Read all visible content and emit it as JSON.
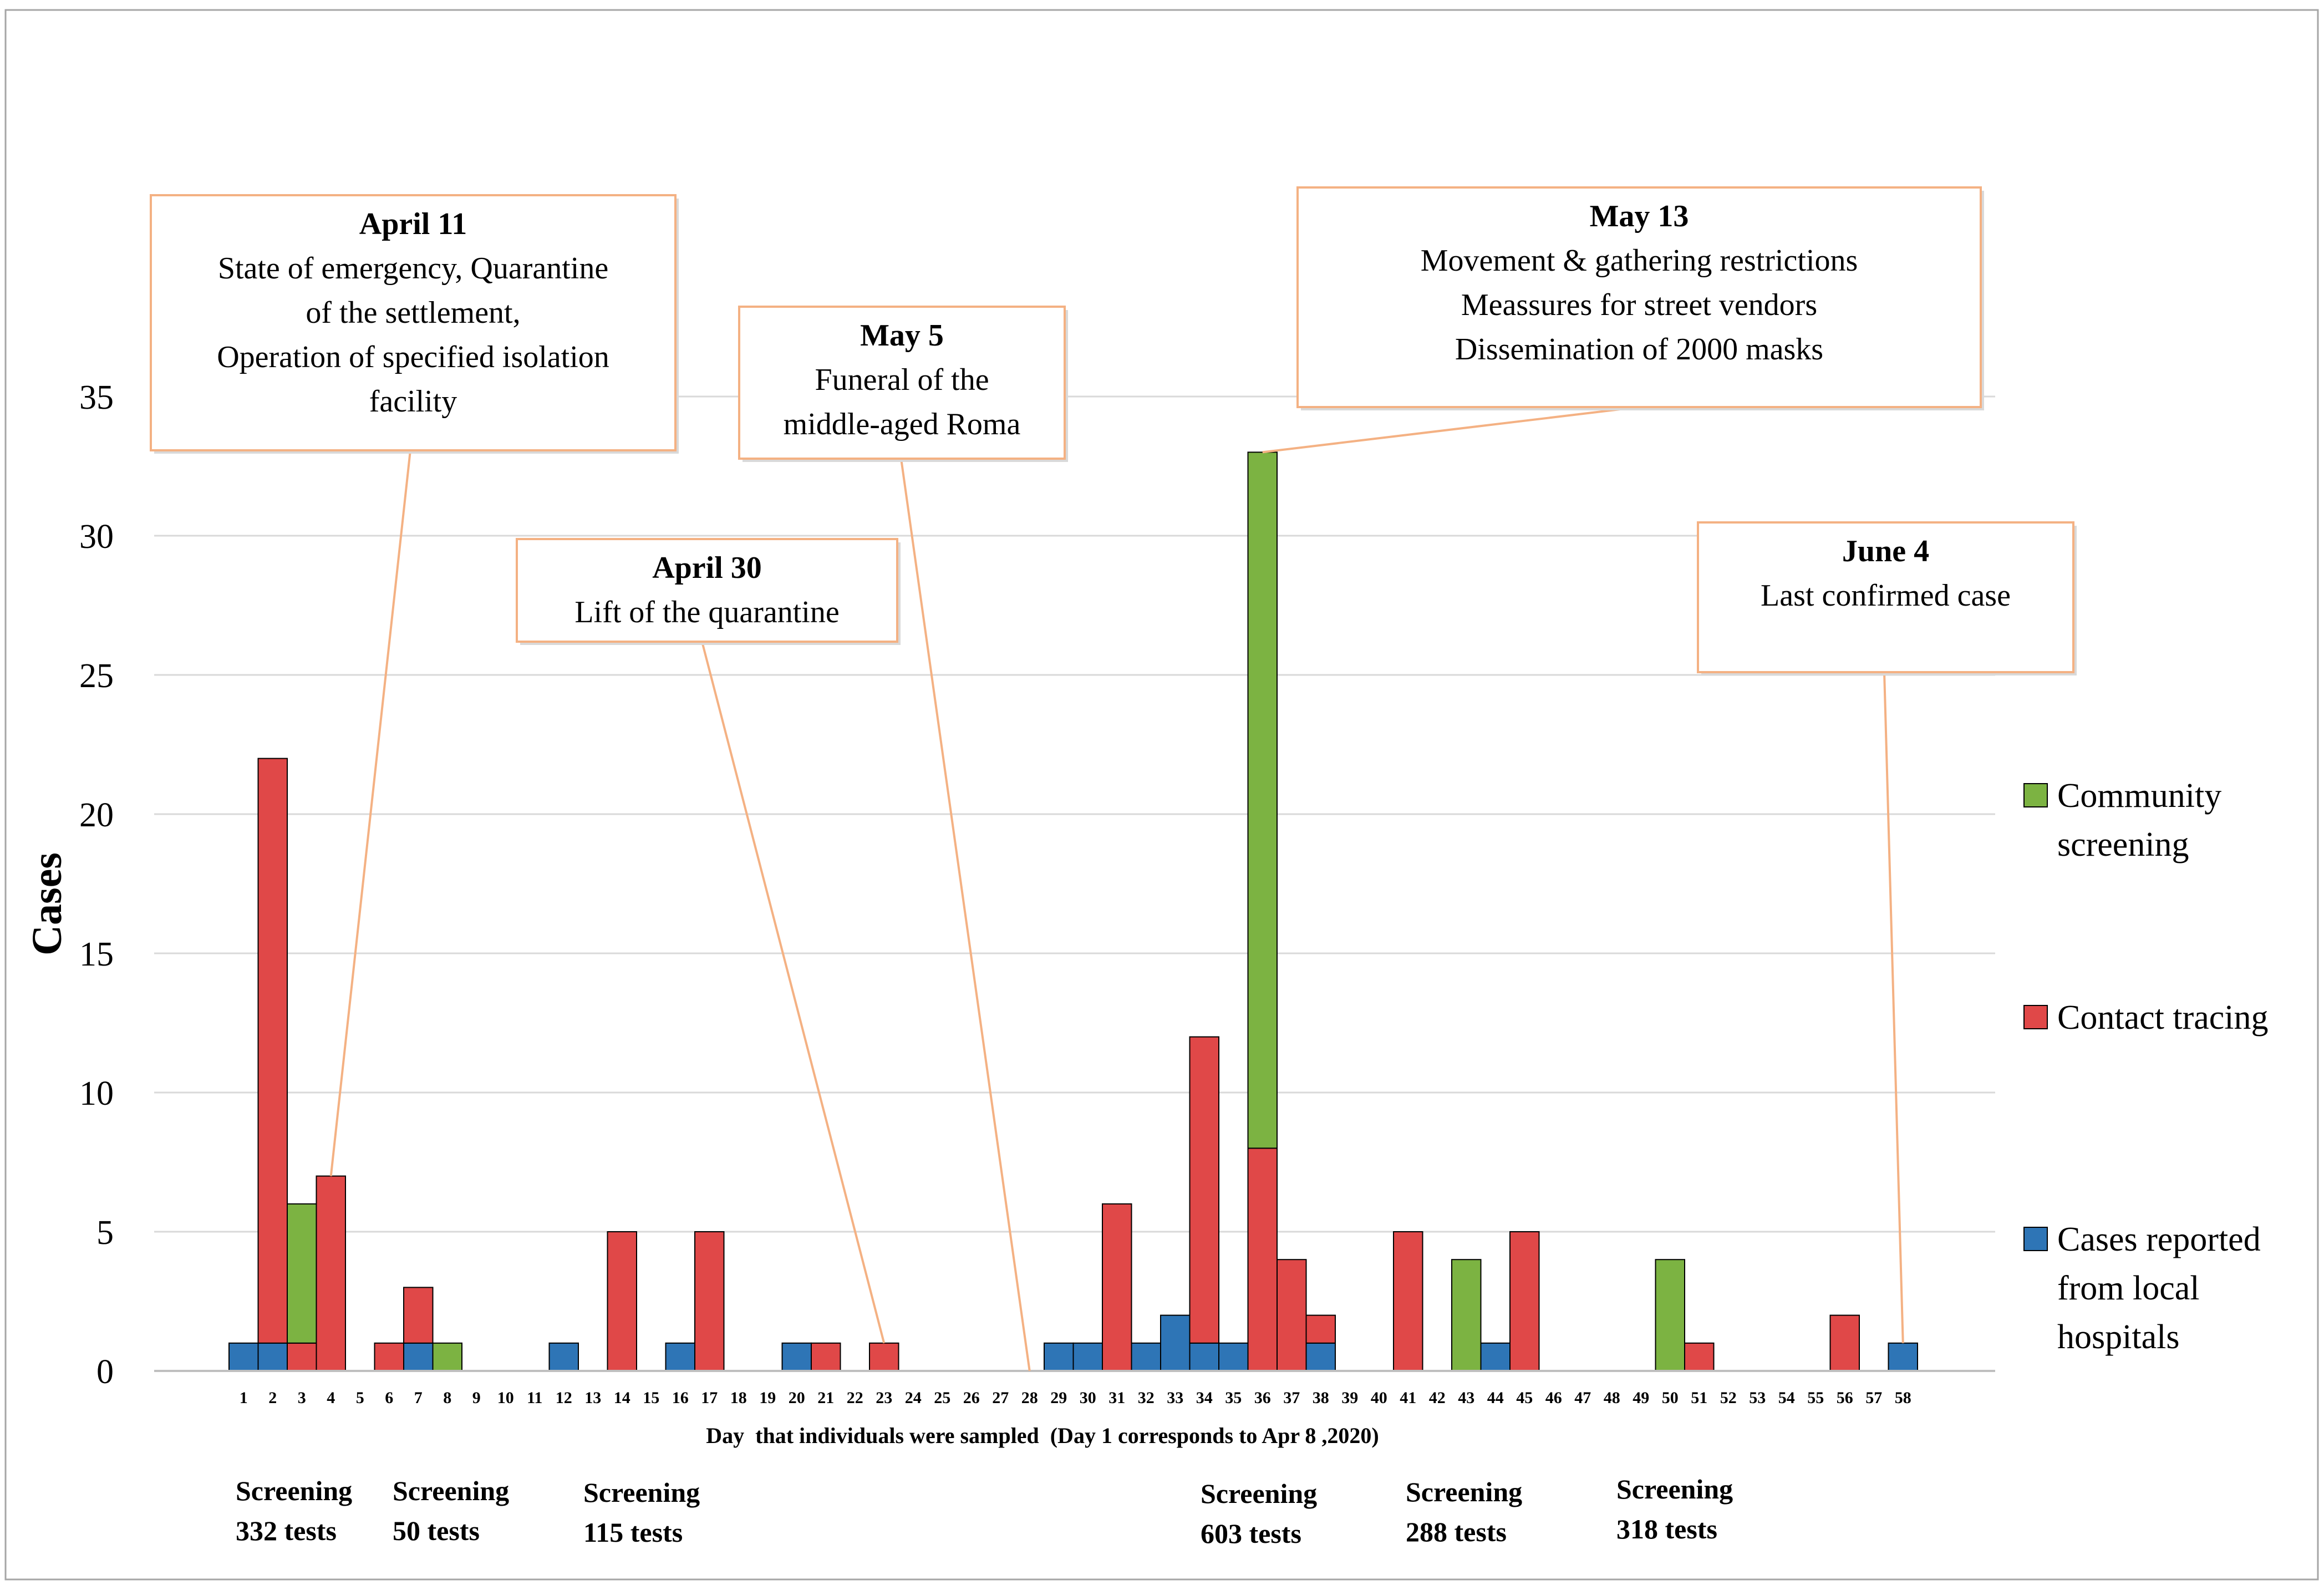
{
  "chart_data": {
    "type": "bar",
    "stacked": true,
    "ylabel": "Cases",
    "xlabel": "Day  that individuals were sampled  (Day 1 corresponds to Apr 8 ,2020)",
    "ylim": [
      0,
      35
    ],
    "yticks": [
      "0",
      "5",
      "10",
      "15",
      "20",
      "25",
      "30",
      "35"
    ],
    "grid": true,
    "legend_position": "right",
    "categories": [
      "1",
      "2",
      "3",
      "4",
      "5",
      "6",
      "7",
      "8",
      "9",
      "10",
      "11",
      "12",
      "13",
      "14",
      "15",
      "16",
      "17",
      "18",
      "19",
      "20",
      "21",
      "22",
      "23",
      "24",
      "25",
      "26",
      "27",
      "28",
      "29",
      "30",
      "31",
      "32",
      "33",
      "34",
      "35",
      "36",
      "37",
      "38",
      "39",
      "40",
      "41",
      "42",
      "43",
      "44",
      "45",
      "46",
      "47",
      "48",
      "49",
      "50",
      "51",
      "52",
      "53",
      "54",
      "55",
      "56",
      "57",
      "58"
    ],
    "series": [
      {
        "name": "Cases reported from local hospitals",
        "legend_lines": [
          "Cases reported",
          "from local",
          "hospitals"
        ],
        "color": "#2e75b6",
        "values": [
          1,
          1,
          0,
          0,
          0,
          0,
          1,
          0,
          0,
          0,
          0,
          1,
          0,
          0,
          0,
          1,
          0,
          0,
          0,
          1,
          0,
          0,
          0,
          0,
          0,
          0,
          0,
          0,
          1,
          1,
          0,
          1,
          2,
          1,
          1,
          0,
          0,
          1,
          0,
          0,
          0,
          0,
          0,
          1,
          0,
          0,
          0,
          0,
          0,
          0,
          0,
          0,
          0,
          0,
          0,
          0,
          0,
          1
        ]
      },
      {
        "name": "Contact tracing",
        "legend_lines": [
          "Contact tracing"
        ],
        "color": "#e04848",
        "values": [
          0,
          21,
          1,
          7,
          0,
          1,
          2,
          0,
          0,
          0,
          0,
          0,
          0,
          5,
          0,
          0,
          5,
          0,
          0,
          0,
          1,
          0,
          1,
          0,
          0,
          0,
          0,
          0,
          0,
          0,
          6,
          0,
          0,
          11,
          0,
          8,
          4,
          1,
          0,
          0,
          5,
          0,
          0,
          0,
          5,
          0,
          0,
          0,
          0,
          0,
          1,
          0,
          0,
          0,
          0,
          2,
          0,
          0
        ]
      },
      {
        "name": "Community screening",
        "legend_lines": [
          "Community",
          "screening"
        ],
        "color": "#7cb342",
        "values": [
          0,
          0,
          5,
          0,
          0,
          0,
          0,
          1,
          0,
          0,
          0,
          0,
          0,
          0,
          0,
          0,
          0,
          0,
          0,
          0,
          0,
          0,
          0,
          0,
          0,
          0,
          0,
          0,
          0,
          0,
          0,
          0,
          0,
          0,
          0,
          25,
          0,
          0,
          0,
          0,
          0,
          0,
          4,
          0,
          0,
          0,
          0,
          0,
          0,
          4,
          0,
          0,
          0,
          0,
          0,
          0,
          0,
          0
        ]
      }
    ],
    "annotations": [
      {
        "id": "apr11",
        "title": "April 11",
        "lines": [
          "State of  emergency, Quarantine",
          "of the settlement,",
          "Operation of specified isolation",
          "facility"
        ],
        "points_to_day": 4,
        "points_to_value": 7
      },
      {
        "id": "apr30",
        "title": "April 30",
        "lines": [
          "Lift of the quarantine"
        ],
        "points_to_day": 23,
        "points_to_value": 1
      },
      {
        "id": "may5",
        "title": "May 5",
        "lines": [
          "Funeral of the",
          "middle-aged Roma"
        ],
        "points_to_day": 28,
        "points_to_value": 0
      },
      {
        "id": "may13",
        "title": "May 13",
        "lines": [
          "Movement & gathering restrictions",
          "Meassures for street vendors",
          "Dissemination of 2000 masks"
        ],
        "points_to_day": 36,
        "points_to_value": 33
      },
      {
        "id": "jun4",
        "title": "June 4",
        "lines": [
          "Last confirmed case"
        ],
        "points_to_day": 58,
        "points_to_value": 1
      }
    ],
    "screenings": [
      {
        "label": "Screening",
        "tests": "332 tests",
        "day": 1
      },
      {
        "label": "Screening",
        "tests": "50 tests",
        "day": 6
      },
      {
        "label": "Screening",
        "tests": "115 tests",
        "day": 12
      },
      {
        "label": "Screening",
        "tests": "603 tests",
        "day": 33
      },
      {
        "label": "Screening",
        "tests": "288 tests",
        "day": 40
      },
      {
        "label": "Screening",
        "tests": "318 tests",
        "day": 47
      }
    ]
  },
  "colors": {
    "callout_border": "#f4b183",
    "grid": "#d9d9d9",
    "axis": "#bfbfbf",
    "frame": "#a6a6a6"
  }
}
